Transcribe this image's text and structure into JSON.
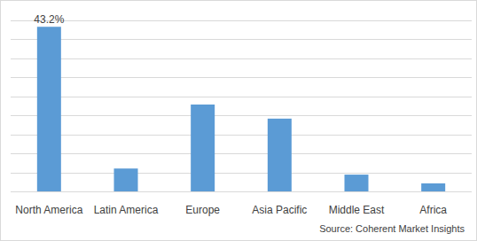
{
  "chart_data": {
    "type": "bar",
    "categories": [
      "North America",
      "Latin America",
      "Europe",
      "Asia Pacific",
      "Middle East",
      "Africa"
    ],
    "values": [
      43.2,
      6.0,
      22.8,
      19.1,
      4.4,
      2.1
    ],
    "value_labels": [
      "43.2%",
      null,
      null,
      null,
      null,
      null
    ],
    "color": "#5b9bd5",
    "ylim": [
      0,
      45
    ],
    "yticks": [
      0,
      5,
      10,
      15,
      20,
      25,
      30,
      35,
      40,
      45
    ],
    "grid": true,
    "tick_labels": "x",
    "source": "Source: Coherent Market Insights"
  }
}
